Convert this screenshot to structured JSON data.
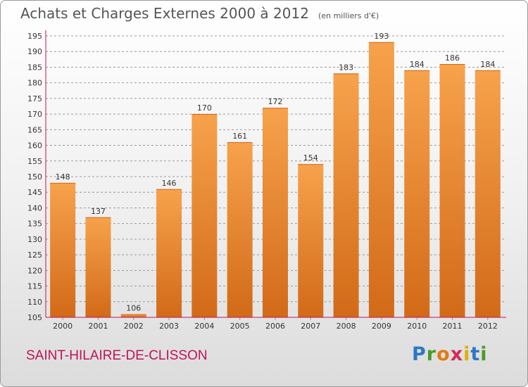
{
  "title": "Achats et Charges Externes 2000 à 2012",
  "unit_note": "(en milliers d'€)",
  "commune": "SAINT-HILAIRE-DE-CLISSON",
  "brand": {
    "letters": [
      "P",
      "r",
      "o",
      "x",
      "i",
      "t",
      "i"
    ],
    "colors": [
      "#2e77c7",
      "#4a9a2a",
      "#e07a10",
      "#d42a5a",
      "#e0b000",
      "#2e77c7",
      "#4a9a2a"
    ]
  },
  "colors": {
    "bar_light": "#f7a24c",
    "bar_dark": "#d26a18",
    "axis": "#c0125a",
    "grid": "#9a9a9a",
    "text": "#333333"
  },
  "chart_data": {
    "type": "bar",
    "title": "Achats et Charges Externes 2000 à 2012",
    "categories": [
      "2000",
      "2001",
      "2002",
      "2003",
      "2004",
      "2005",
      "2006",
      "2007",
      "2008",
      "2009",
      "2010",
      "2011",
      "2012"
    ],
    "values": [
      148,
      137,
      106,
      146,
      170,
      161,
      172,
      154,
      183,
      193,
      184,
      186,
      184
    ],
    "yticks": [
      105,
      110,
      115,
      120,
      125,
      130,
      135,
      140,
      145,
      150,
      155,
      160,
      165,
      170,
      175,
      180,
      185,
      190,
      195
    ],
    "ylim": [
      105,
      195
    ],
    "xlabel": "",
    "ylabel": "",
    "grid": true
  }
}
